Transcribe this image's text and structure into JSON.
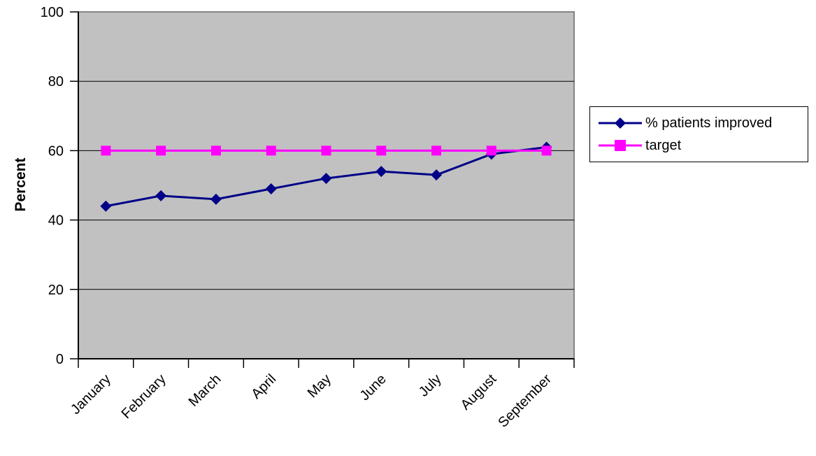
{
  "chart_data": {
    "type": "line",
    "title": "",
    "categories": [
      "January",
      "February",
      "March",
      "April",
      "May",
      "June",
      "July",
      "August",
      "September"
    ],
    "series": [
      {
        "name": "% patients improved",
        "color": "#000088",
        "marker": "diamond",
        "values": [
          44,
          47,
          46,
          49,
          52,
          54,
          53,
          59,
          61
        ]
      },
      {
        "name": "target",
        "color": "#FF00FF",
        "marker": "square",
        "values": [
          60,
          60,
          60,
          60,
          60,
          60,
          60,
          60,
          60
        ]
      }
    ],
    "xlabel": "",
    "ylabel": "Percent",
    "ylim": [
      0,
      100
    ],
    "yticks": [
      0,
      20,
      40,
      60,
      80,
      100
    ],
    "x_tick_labels_rotation_deg": 45,
    "grid": true,
    "legend_position": "right",
    "colors": {
      "plot_background": "#C1C1C1",
      "plot_border": "#848484",
      "axis": "#000000",
      "gridline": "#000000",
      "text": "#000000",
      "page_background": "#FFFFFF"
    }
  }
}
